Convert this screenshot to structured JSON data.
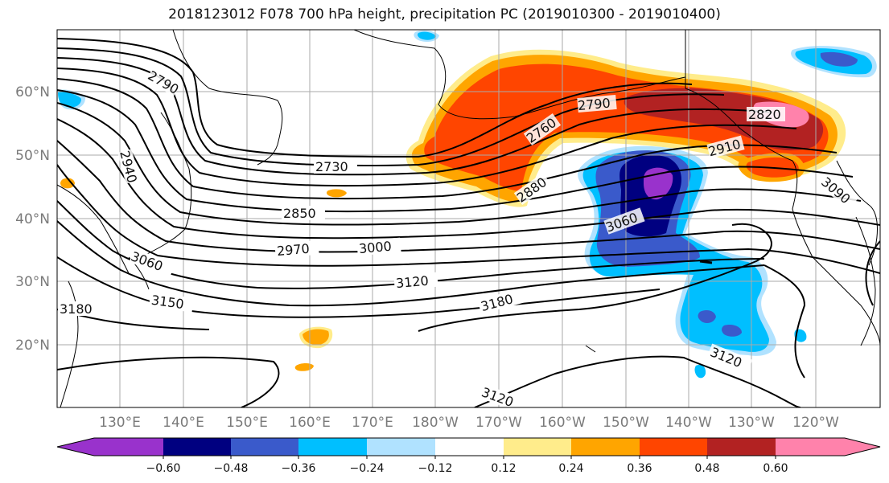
{
  "title": "2018123012 F078 700 hPa height, precipitation PC (2019010300 - 2019010400)",
  "colors": {
    "below_-0.60": "#9932cc",
    "-0.60_-0.48": "#000080",
    "-0.48_-0.36": "#3a5acb",
    "-0.36_-0.24": "#00bfff",
    "-0.24_-0.12": "#b0e2ff",
    "-0.12_0.12": "#ffffff",
    "0.12_0.24": "#ffec8b",
    "0.24_0.36": "#ffa500",
    "0.36_0.48": "#ff4500",
    "0.48_0.60": "#b22222",
    "above_0.60": "#ff82ab"
  },
  "lon_labels": [
    "130°E",
    "140°E",
    "150°E",
    "160°E",
    "170°E",
    "180°W",
    "170°W",
    "160°W",
    "150°W",
    "140°W",
    "130°W",
    "120°W"
  ],
  "lat_labels": [
    "20°N",
    "30°N",
    "40°N",
    "50°N",
    "60°N"
  ],
  "contour_labels": [
    "2790",
    "2940",
    "2730",
    "2760",
    "2790",
    "2820",
    "2910",
    "2880",
    "2850",
    "2970",
    "3000",
    "3060",
    "3060",
    "3090",
    "3120",
    "3150",
    "3180",
    "3120",
    "3120",
    "3180"
  ],
  "colorbar": {
    "ticks": [
      "−0.60",
      "−0.48",
      "−0.36",
      "−0.24",
      "−0.12",
      "0.12",
      "0.24",
      "0.36",
      "0.48",
      "0.60"
    ]
  }
}
